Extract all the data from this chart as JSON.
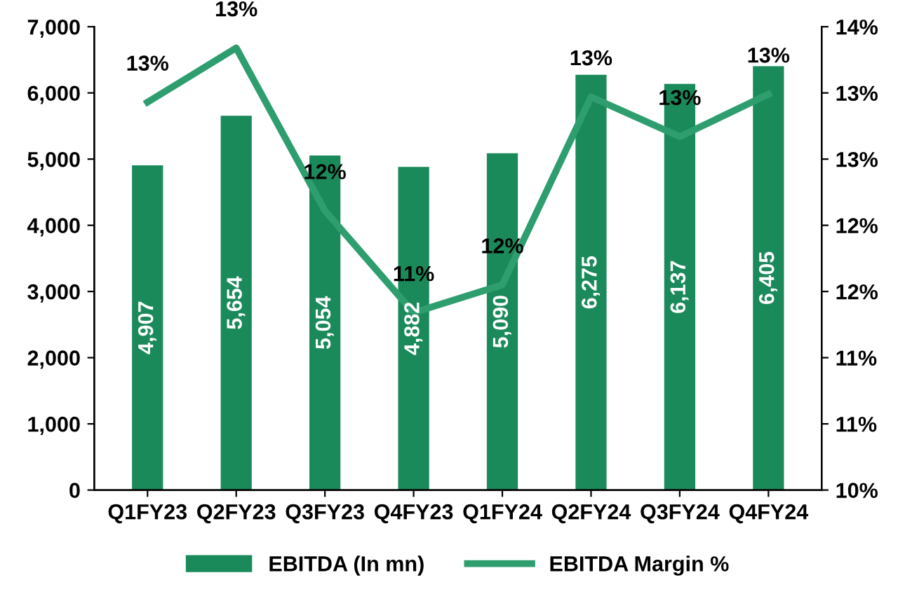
{
  "chart_data": {
    "type": "bar",
    "categories": [
      "Q1FY23",
      "Q2FY23",
      "Q3FY23",
      "Q4FY23",
      "Q1FY24",
      "Q2FY24",
      "Q3FY24",
      "Q4FY24"
    ],
    "series": [
      {
        "name": "EBITDA (In mn)",
        "color": "#1b8a5a",
        "values": [
          4907,
          5654,
          5054,
          4882,
          5090,
          6275,
          6137,
          6405
        ],
        "value_labels": [
          "4,907",
          "5,654",
          "5,054",
          "4,882",
          "5,090",
          "6,275",
          "6,137",
          "6,405"
        ]
      },
      {
        "name": "EBITDA Margin %",
        "type": "line",
        "axis": "y2",
        "color": "#2e9e6e",
        "values": [
          12.93,
          13.34,
          12.11,
          11.34,
          11.55,
          12.97,
          12.67,
          12.99
        ],
        "value_labels": [
          "13%",
          "13%",
          "12%",
          "11%",
          "12%",
          "13%",
          "13%",
          "13%"
        ]
      }
    ],
    "ylim": [
      0,
      7000
    ],
    "yticks": [
      {
        "value": 0,
        "label": "0"
      },
      {
        "value": 1000,
        "label": "1,000"
      },
      {
        "value": 2000,
        "label": "2,000"
      },
      {
        "value": 3000,
        "label": "3,000"
      },
      {
        "value": 4000,
        "label": "4,000"
      },
      {
        "value": 5000,
        "label": "5,000"
      },
      {
        "value": 6000,
        "label": "6,000"
      },
      {
        "value": 7000,
        "label": "7,000"
      }
    ],
    "y2lim": [
      10,
      13.5
    ],
    "y2ticks": [
      {
        "value": 10,
        "label": "10%"
      },
      {
        "value": 10.5,
        "label": "11%"
      },
      {
        "value": 11,
        "label": "11%"
      },
      {
        "value": 11.5,
        "label": "12%"
      },
      {
        "value": 12,
        "label": "12%"
      },
      {
        "value": 12.5,
        "label": "13%"
      },
      {
        "value": 13,
        "label": "13%"
      },
      {
        "value": 13.5,
        "label": "14%"
      }
    ],
    "legend": "bottom",
    "grid": false
  }
}
